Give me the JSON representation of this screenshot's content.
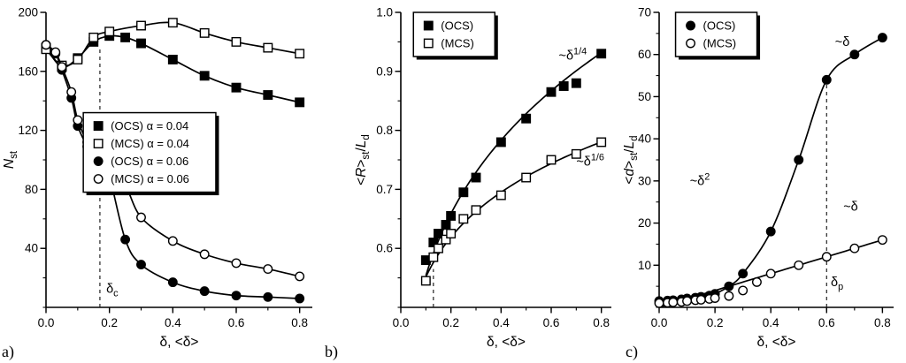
{
  "panel_letters": [
    "a)",
    "b)",
    "c)"
  ],
  "chart_data": [
    {
      "id": "a",
      "type": "scatter",
      "xlabel_segs": [
        {
          "t": "δ, <δ>"
        }
      ],
      "ylabel_segs": [
        {
          "t": "N",
          "i": true
        },
        {
          "t": "st",
          "sub": true
        }
      ],
      "xlim": [
        0,
        0.84
      ],
      "ylim": [
        0,
        200
      ],
      "xticks": [
        [
          0,
          "0.0"
        ],
        [
          0.2,
          "0.2"
        ],
        [
          0.4,
          "0.4"
        ],
        [
          0.6,
          "0.6"
        ],
        [
          0.8,
          "0.8"
        ]
      ],
      "yticks": [
        [
          40,
          "40"
        ],
        [
          80,
          "80"
        ],
        [
          120,
          "120"
        ],
        [
          160,
          "160"
        ],
        [
          200,
          "200"
        ]
      ],
      "xminor": 0.1,
      "yminor": 20,
      "grid": false,
      "vline": {
        "x": 0.17,
        "y1": 0,
        "y2": 176,
        "label": [
          {
            "t": "δ"
          },
          {
            "t": "c",
            "sub": true
          }
        ],
        "lx": 0.19,
        "ly": 10
      },
      "legend": {
        "fx": 0.14,
        "fy": 0.34,
        "boxed": true,
        "entries": [
          {
            "marker": "square",
            "filled": true,
            "label": "(OCS) α = 0.04"
          },
          {
            "marker": "square",
            "filled": false,
            "label": "(MCS) α = 0.04"
          },
          {
            "marker": "circle",
            "filled": true,
            "label": "(OCS) α = 0.06"
          },
          {
            "marker": "circle",
            "filled": false,
            "label": "(MCS) α = 0.06"
          }
        ]
      },
      "series": [
        {
          "name": "(OCS) α = 0.04",
          "marker": "square",
          "filled": true,
          "x": [
            0,
            0.05,
            0.1,
            0.15,
            0.2,
            0.25,
            0.3,
            0.4,
            0.5,
            0.6,
            0.7,
            0.8
          ],
          "y": [
            176,
            163,
            169,
            180,
            184,
            183,
            179,
            168,
            157,
            149,
            144,
            139
          ]
        },
        {
          "name": "(MCS) α = 0.04",
          "marker": "square",
          "filled": false,
          "x": [
            0,
            0.05,
            0.1,
            0.15,
            0.2,
            0.3,
            0.4,
            0.5,
            0.6,
            0.7,
            0.8
          ],
          "y": [
            175,
            164,
            168,
            183,
            187,
            191,
            193,
            186,
            180,
            176,
            172
          ]
        },
        {
          "name": "(OCS) α = 0.06",
          "marker": "circle",
          "filled": true,
          "x": [
            0,
            0.03,
            0.05,
            0.08,
            0.1,
            0.13,
            0.15,
            0.18,
            0.2,
            0.25,
            0.3,
            0.4,
            0.5,
            0.6,
            0.7,
            0.8
          ],
          "y": [
            178,
            172,
            161,
            142,
            123,
            109,
            101,
            95,
            89,
            46,
            29,
            17,
            11,
            8,
            7,
            6
          ]
        },
        {
          "name": "(MCS) α = 0.06",
          "marker": "circle",
          "filled": false,
          "x": [
            0,
            0.03,
            0.05,
            0.08,
            0.1,
            0.13,
            0.15,
            0.18,
            0.2,
            0.25,
            0.3,
            0.4,
            0.5,
            0.6,
            0.7,
            0.8
          ],
          "y": [
            178,
            173,
            163,
            146,
            127,
            112,
            105,
            100,
            97,
            83,
            61,
            45,
            36,
            30,
            26,
            21
          ]
        }
      ],
      "annotations": []
    },
    {
      "id": "b",
      "type": "scatter",
      "xlabel_segs": [
        {
          "t": "δ, <δ>"
        }
      ],
      "ylabel_segs": [
        {
          "t": "<"
        },
        {
          "t": "R",
          "i": true
        },
        {
          "t": ">"
        },
        {
          "t": "st",
          "sub": true
        },
        {
          "t": "/"
        },
        {
          "t": "L",
          "i": true
        },
        {
          "t": "d",
          "sub": true
        }
      ],
      "xlim": [
        0,
        0.84
      ],
      "ylim": [
        0.5,
        1.0
      ],
      "xticks": [
        [
          0,
          "0.0"
        ],
        [
          0.2,
          "0.2"
        ],
        [
          0.4,
          "0.4"
        ],
        [
          0.6,
          "0.6"
        ],
        [
          0.8,
          "0.8"
        ]
      ],
      "yticks": [
        [
          0.6,
          "0.6"
        ],
        [
          0.7,
          "0.7"
        ],
        [
          0.8,
          "0.8"
        ],
        [
          0.9,
          "0.9"
        ],
        [
          1.0,
          "1.0"
        ]
      ],
      "xminor": 0.1,
      "yminor": 0.05,
      "grid": false,
      "vline": {
        "x": 0.13,
        "y1": 0.5,
        "y2": 0.565
      },
      "legend": {
        "fx": 0.06,
        "fy": 0.0,
        "boxed": true,
        "entries": [
          {
            "marker": "square",
            "filled": true,
            "label": "(OCS)"
          },
          {
            "marker": "square",
            "filled": false,
            "label": "(MCS)"
          }
        ]
      },
      "series": [
        {
          "name": "(OCS)",
          "marker": "square",
          "filled": true,
          "x": [
            0.1,
            0.13,
            0.15,
            0.18,
            0.2,
            0.25,
            0.3,
            0.4,
            0.5,
            0.6,
            0.65,
            0.7,
            0.8
          ],
          "y": [
            0.58,
            0.61,
            0.625,
            0.64,
            0.655,
            0.695,
            0.72,
            0.78,
            0.82,
            0.865,
            0.875,
            0.88,
            0.93
          ],
          "fit": {
            "a": 0.985,
            "b": 0.25
          }
        },
        {
          "name": "(MCS)",
          "marker": "square",
          "filled": false,
          "x": [
            0.1,
            0.13,
            0.15,
            0.18,
            0.2,
            0.25,
            0.3,
            0.4,
            0.5,
            0.6,
            0.7,
            0.8
          ],
          "y": [
            0.545,
            0.585,
            0.6,
            0.615,
            0.625,
            0.65,
            0.665,
            0.69,
            0.72,
            0.75,
            0.76,
            0.78
          ],
          "fit": {
            "a": 0.81,
            "b": 0.167
          }
        }
      ],
      "annotations": [
        {
          "x": 0.63,
          "y": 0.92,
          "segs": [
            {
              "t": "~δ"
            },
            {
              "t": "1/4",
              "sup": true
            }
          ]
        },
        {
          "x": 0.7,
          "y": 0.74,
          "segs": [
            {
              "t": "~δ"
            },
            {
              "t": "1/6",
              "sup": true
            }
          ]
        }
      ]
    },
    {
      "id": "c",
      "type": "scatter",
      "xlabel_segs": [
        {
          "t": "δ, <δ>"
        }
      ],
      "ylabel_segs": [
        {
          "t": "<"
        },
        {
          "t": "d",
          "i": true
        },
        {
          "t": ">"
        },
        {
          "t": "st",
          "sub": true
        },
        {
          "t": "/"
        },
        {
          "t": "L",
          "i": true
        },
        {
          "t": "d",
          "sub": true
        }
      ],
      "xlim": [
        0,
        0.84
      ],
      "ylim": [
        0,
        70
      ],
      "xticks": [
        [
          0,
          "0.0"
        ],
        [
          0.2,
          "0.2"
        ],
        [
          0.4,
          "0.4"
        ],
        [
          0.6,
          "0.6"
        ],
        [
          0.8,
          "0.8"
        ]
      ],
      "yticks": [
        [
          10,
          "10"
        ],
        [
          20,
          "20"
        ],
        [
          30,
          "30"
        ],
        [
          40,
          "40"
        ],
        [
          50,
          "50"
        ],
        [
          60,
          "60"
        ],
        [
          70,
          "70"
        ]
      ],
      "xminor": 0.1,
      "yminor": 5,
      "grid": false,
      "vline": {
        "x": 0.6,
        "y1": 0,
        "y2": 55,
        "label": [
          {
            "t": "δ"
          },
          {
            "t": "p",
            "sub": true
          }
        ],
        "lx": 0.615,
        "ly": 5
      },
      "legend": {
        "fx": 0.07,
        "fy": 0.0,
        "boxed": true,
        "entries": [
          {
            "marker": "circle",
            "filled": true,
            "label": "(OCS)"
          },
          {
            "marker": "circle",
            "filled": false,
            "label": "(MCS)"
          }
        ]
      },
      "series": [
        {
          "name": "(OCS)",
          "marker": "circle",
          "filled": true,
          "x": [
            0,
            0.03,
            0.05,
            0.08,
            0.1,
            0.13,
            0.15,
            0.18,
            0.2,
            0.25,
            0.3,
            0.4,
            0.5,
            0.6,
            0.7,
            0.8
          ],
          "y": [
            1.5,
            1.6,
            1.7,
            1.9,
            2.1,
            2.3,
            2.5,
            2.8,
            3.2,
            5,
            8,
            18,
            35,
            54,
            60,
            64
          ]
        },
        {
          "name": "(MCS)",
          "marker": "circle",
          "filled": false,
          "x": [
            0,
            0.03,
            0.05,
            0.08,
            0.1,
            0.13,
            0.15,
            0.18,
            0.2,
            0.25,
            0.3,
            0.35,
            0.4,
            0.5,
            0.6,
            0.7,
            0.8
          ],
          "y": [
            1,
            1.1,
            1.2,
            1.3,
            1.5,
            1.7,
            1.8,
            2,
            2.2,
            2.7,
            4,
            6,
            8,
            10,
            12,
            14,
            16
          ],
          "fit": {
            "a": 20,
            "b": 1
          }
        }
      ],
      "annotations": [
        {
          "x": 0.11,
          "y": 29,
          "segs": [
            {
              "t": "~δ"
            },
            {
              "t": "2",
              "sup": true
            }
          ]
        },
        {
          "x": 0.63,
          "y": 62,
          "segs": [
            {
              "t": "~δ"
            }
          ]
        },
        {
          "x": 0.66,
          "y": 23,
          "segs": [
            {
              "t": "~δ"
            }
          ]
        }
      ]
    }
  ]
}
